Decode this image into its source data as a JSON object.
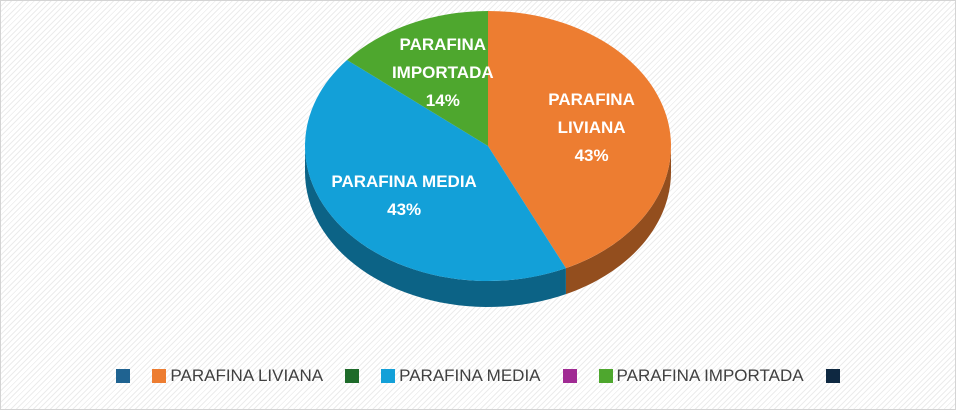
{
  "chart_data": {
    "type": "pie3d",
    "categories": [
      null,
      "PARAFINA LIVIANA",
      null,
      "PARAFINA MEDIA",
      null,
      "PARAFINA IMPORTADA",
      null
    ],
    "values": [
      null,
      43,
      null,
      43,
      null,
      14,
      null
    ],
    "value_labels": [
      null,
      "43%",
      null,
      "43%",
      null,
      "14%",
      null
    ],
    "colors": [
      "#1f6391",
      "#ed7d31",
      "#1e6b2a",
      "#13a0d8",
      "#a02b93",
      "#4ea72e",
      "#0e2841"
    ],
    "legend": "bottom"
  }
}
